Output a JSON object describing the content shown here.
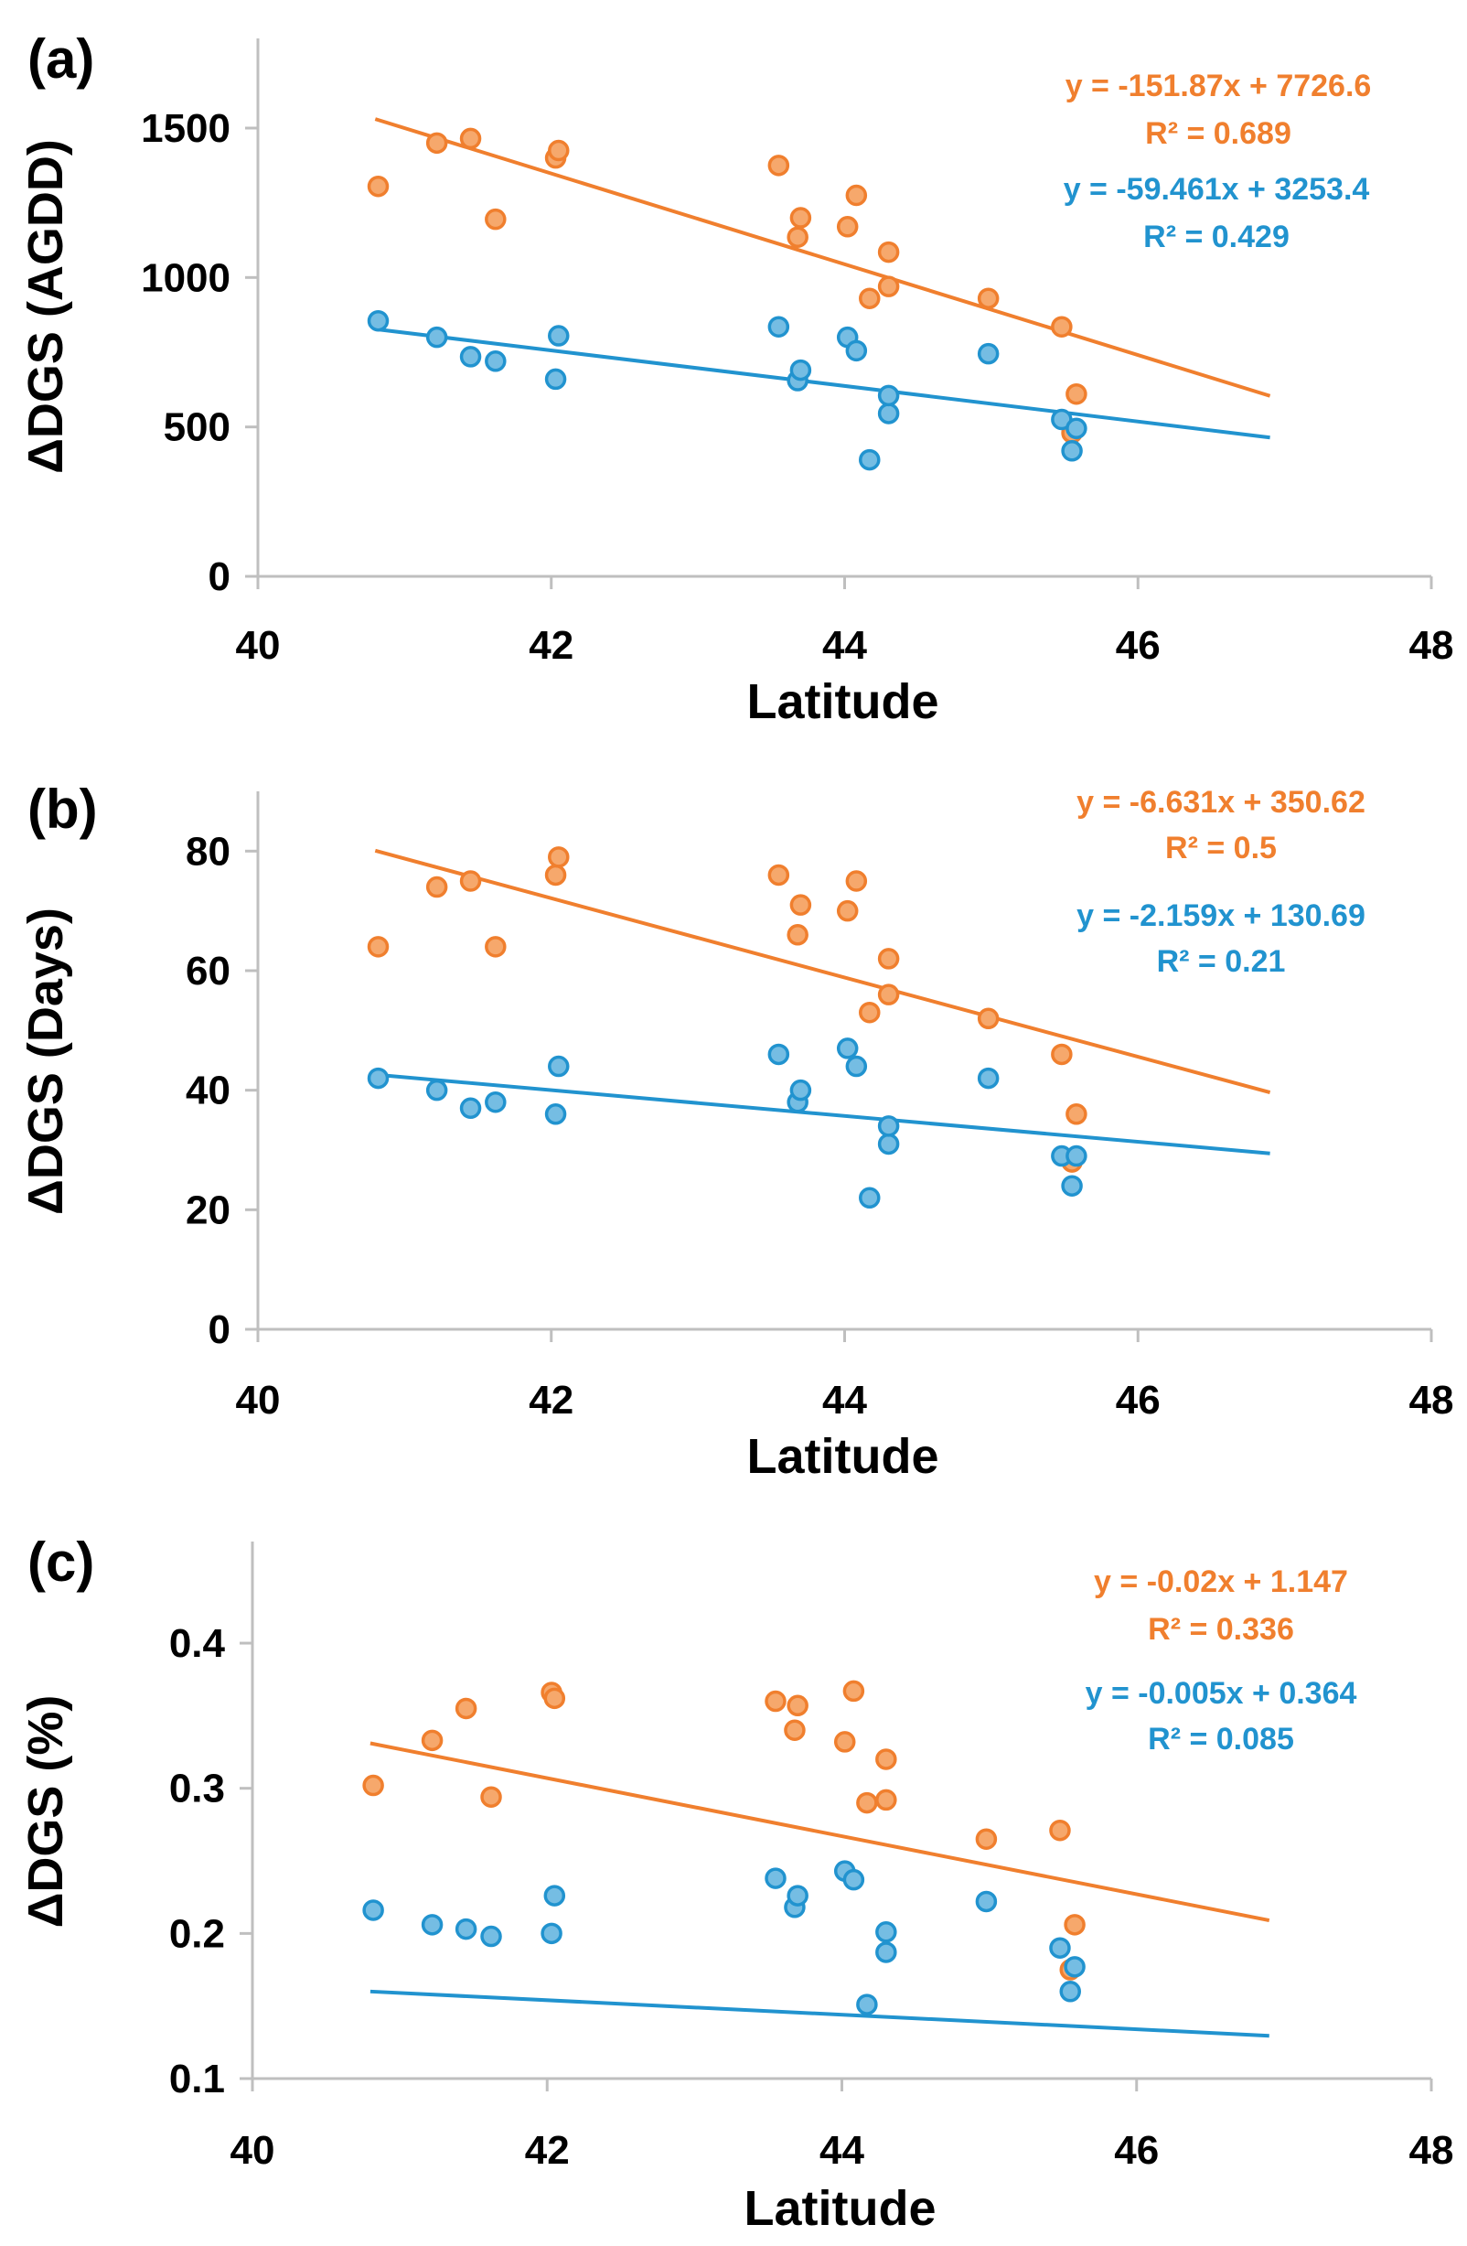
{
  "colors": {
    "orange": "#F07F2E",
    "orange_fill": "#F6A86C",
    "blue": "#2193CF",
    "blue_fill": "#75BDE3",
    "axis": "#BFBFBF"
  },
  "chart_data": [
    {
      "type": "scatter",
      "panel_label": "(a)",
      "xlabel": "Latitude",
      "ylabel": "ΔDGS (AGDD)",
      "xlim": [
        40,
        48
      ],
      "ylim": [
        0,
        1800
      ],
      "xticks": [
        40,
        42,
        44,
        46,
        48
      ],
      "yticks": [
        0,
        500,
        1000,
        1500
      ],
      "series": [
        {
          "name": "orange",
          "color": "orange",
          "equation": "y = -151.87x + 7726.6",
          "r2": "R² = 0.689",
          "trend": {
            "slope": -151.87,
            "intercept": 7726.6,
            "x_range": [
              40.8,
              46.9
            ]
          },
          "points": [
            [
              40.82,
              1305
            ],
            [
              41.22,
              1450
            ],
            [
              41.45,
              1465
            ],
            [
              41.62,
              1195
            ],
            [
              42.03,
              1400
            ],
            [
              42.05,
              1425
            ],
            [
              43.55,
              1375
            ],
            [
              43.68,
              1135
            ],
            [
              43.7,
              1200
            ],
            [
              44.02,
              1170
            ],
            [
              44.08,
              1275
            ],
            [
              44.17,
              930
            ],
            [
              44.3,
              970
            ],
            [
              44.3,
              1085
            ],
            [
              44.98,
              930
            ],
            [
              45.48,
              835
            ],
            [
              45.55,
              480
            ],
            [
              45.58,
              610
            ]
          ]
        },
        {
          "name": "blue",
          "color": "blue",
          "equation": "y = -59.461x + 3253.4",
          "r2": "R² = 0.429",
          "trend": {
            "slope": -59.461,
            "intercept": 3253.4,
            "x_range": [
              40.8,
              46.9
            ]
          },
          "points": [
            [
              40.82,
              855
            ],
            [
              41.22,
              800
            ],
            [
              41.45,
              735
            ],
            [
              41.62,
              720
            ],
            [
              42.03,
              660
            ],
            [
              42.05,
              805
            ],
            [
              43.55,
              835
            ],
            [
              43.68,
              655
            ],
            [
              43.7,
              690
            ],
            [
              44.02,
              800
            ],
            [
              44.08,
              755
            ],
            [
              44.17,
              390
            ],
            [
              44.3,
              545
            ],
            [
              44.3,
              605
            ],
            [
              44.98,
              745
            ],
            [
              45.48,
              525
            ],
            [
              45.55,
              420
            ],
            [
              45.58,
              495
            ]
          ]
        }
      ]
    },
    {
      "type": "scatter",
      "panel_label": "(b)",
      "xlabel": "Latitude",
      "ylabel": "ΔDGS (Days)",
      "xlim": [
        40,
        48
      ],
      "ylim": [
        0,
        90
      ],
      "xticks": [
        40,
        42,
        44,
        46,
        48
      ],
      "yticks": [
        0,
        20,
        40,
        60,
        80
      ],
      "series": [
        {
          "name": "orange",
          "color": "orange",
          "equation": "y = -6.631x + 350.62",
          "r2": "R² = 0.5",
          "trend": {
            "slope": -6.631,
            "intercept": 350.62,
            "x_range": [
              40.8,
              46.9
            ]
          },
          "points": [
            [
              40.82,
              64
            ],
            [
              41.22,
              74
            ],
            [
              41.45,
              75
            ],
            [
              41.62,
              64
            ],
            [
              42.03,
              76
            ],
            [
              42.05,
              79
            ],
            [
              43.55,
              76
            ],
            [
              43.68,
              66
            ],
            [
              43.7,
              71
            ],
            [
              44.02,
              70
            ],
            [
              44.08,
              75
            ],
            [
              44.17,
              53
            ],
            [
              44.3,
              56
            ],
            [
              44.3,
              62
            ],
            [
              44.98,
              52
            ],
            [
              45.48,
              46
            ],
            [
              45.55,
              28
            ],
            [
              45.58,
              36
            ]
          ]
        },
        {
          "name": "blue",
          "color": "blue",
          "equation": "y = -2.159x + 130.69",
          "r2": "R² = 0.21",
          "trend": {
            "slope": -2.159,
            "intercept": 130.69,
            "x_range": [
              40.8,
              46.9
            ]
          },
          "points": [
            [
              40.82,
              42
            ],
            [
              41.22,
              40
            ],
            [
              41.45,
              37
            ],
            [
              41.62,
              38
            ],
            [
              42.03,
              36
            ],
            [
              42.05,
              44
            ],
            [
              43.55,
              46
            ],
            [
              43.68,
              38
            ],
            [
              43.7,
              40
            ],
            [
              44.02,
              47
            ],
            [
              44.08,
              44
            ],
            [
              44.17,
              22
            ],
            [
              44.3,
              31
            ],
            [
              44.3,
              34
            ],
            [
              44.98,
              42
            ],
            [
              45.48,
              29
            ],
            [
              45.55,
              24
            ],
            [
              45.58,
              29
            ]
          ]
        }
      ]
    },
    {
      "type": "scatter",
      "panel_label": "(c)",
      "xlabel": "Latitude",
      "ylabel": "ΔDGS (%)",
      "xlim": [
        40,
        48
      ],
      "ylim": [
        0.1,
        0.47
      ],
      "xticks": [
        40,
        42,
        44,
        46,
        48
      ],
      "yticks": [
        0.1,
        0.2,
        0.3,
        0.4
      ],
      "series": [
        {
          "name": "orange",
          "color": "orange",
          "equation": "y = -0.02x + 1.147",
          "r2": "R² = 0.336",
          "trend": {
            "slope": -0.02,
            "intercept": 1.147,
            "x_range": [
              40.8,
              46.9
            ]
          },
          "points": [
            [
              40.82,
              0.302
            ],
            [
              41.22,
              0.333
            ],
            [
              41.45,
              0.355
            ],
            [
              41.62,
              0.294
            ],
            [
              42.03,
              0.366
            ],
            [
              42.05,
              0.362
            ],
            [
              43.55,
              0.36
            ],
            [
              43.68,
              0.34
            ],
            [
              43.7,
              0.357
            ],
            [
              44.02,
              0.332
            ],
            [
              44.08,
              0.367
            ],
            [
              44.17,
              0.29
            ],
            [
              44.3,
              0.292
            ],
            [
              44.3,
              0.32
            ],
            [
              44.98,
              0.265
            ],
            [
              45.48,
              0.271
            ],
            [
              45.55,
              0.175
            ],
            [
              45.58,
              0.206
            ]
          ]
        },
        {
          "name": "blue",
          "color": "blue",
          "equation": "y = -0.005x + 0.364",
          "r2": "R² = 0.085",
          "trend": {
            "slope": -0.005,
            "intercept": 0.364,
            "x_range": [
              40.8,
              46.9
            ]
          },
          "points": [
            [
              40.82,
              0.216
            ],
            [
              41.22,
              0.206
            ],
            [
              41.45,
              0.203
            ],
            [
              41.62,
              0.198
            ],
            [
              42.03,
              0.2
            ],
            [
              42.05,
              0.226
            ],
            [
              43.55,
              0.238
            ],
            [
              43.68,
              0.218
            ],
            [
              43.7,
              0.226
            ],
            [
              44.02,
              0.243
            ],
            [
              44.08,
              0.237
            ],
            [
              44.17,
              0.151
            ],
            [
              44.3,
              0.187
            ],
            [
              44.3,
              0.201
            ],
            [
              44.98,
              0.222
            ],
            [
              45.48,
              0.19
            ],
            [
              45.55,
              0.16
            ],
            [
              45.58,
              0.177
            ]
          ]
        }
      ]
    }
  ]
}
